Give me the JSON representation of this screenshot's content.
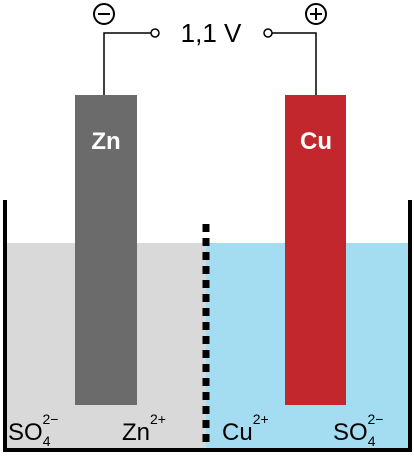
{
  "voltage": "1,1 V",
  "electrodes": [
    {
      "label": "Zn"
    },
    {
      "label": "Cu"
    }
  ],
  "ions": [
    {
      "base": "SO",
      "sub": "4",
      "sup": "2−"
    },
    {
      "base": "Zn",
      "sup": "2+"
    },
    {
      "base": "Cu",
      "sup": "2+"
    },
    {
      "base": "SO",
      "sub": "4",
      "sup": "2−"
    }
  ]
}
